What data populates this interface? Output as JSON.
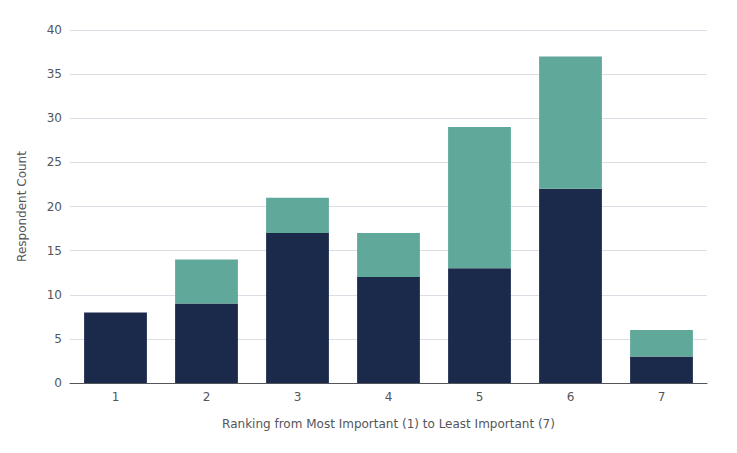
{
  "chart_data": {
    "type": "bar",
    "stacked": true,
    "categories": [
      "1",
      "2",
      "3",
      "4",
      "5",
      "6",
      "7"
    ],
    "series": [
      {
        "color": "#1B2A4A",
        "values": [
          8,
          9,
          17,
          12,
          13,
          22,
          3
        ]
      },
      {
        "color": "#5FA89A",
        "values": [
          0,
          5,
          4,
          5,
          16,
          15,
          3
        ]
      }
    ],
    "xlabel": "Ranking from Most Important (1) to Least Important (7)",
    "ylabel": "Respondent Count",
    "ylim": [
      0,
      40
    ],
    "yticks": [
      0,
      5,
      10,
      15,
      20,
      25,
      30,
      35,
      40
    ],
    "grid": true
  }
}
